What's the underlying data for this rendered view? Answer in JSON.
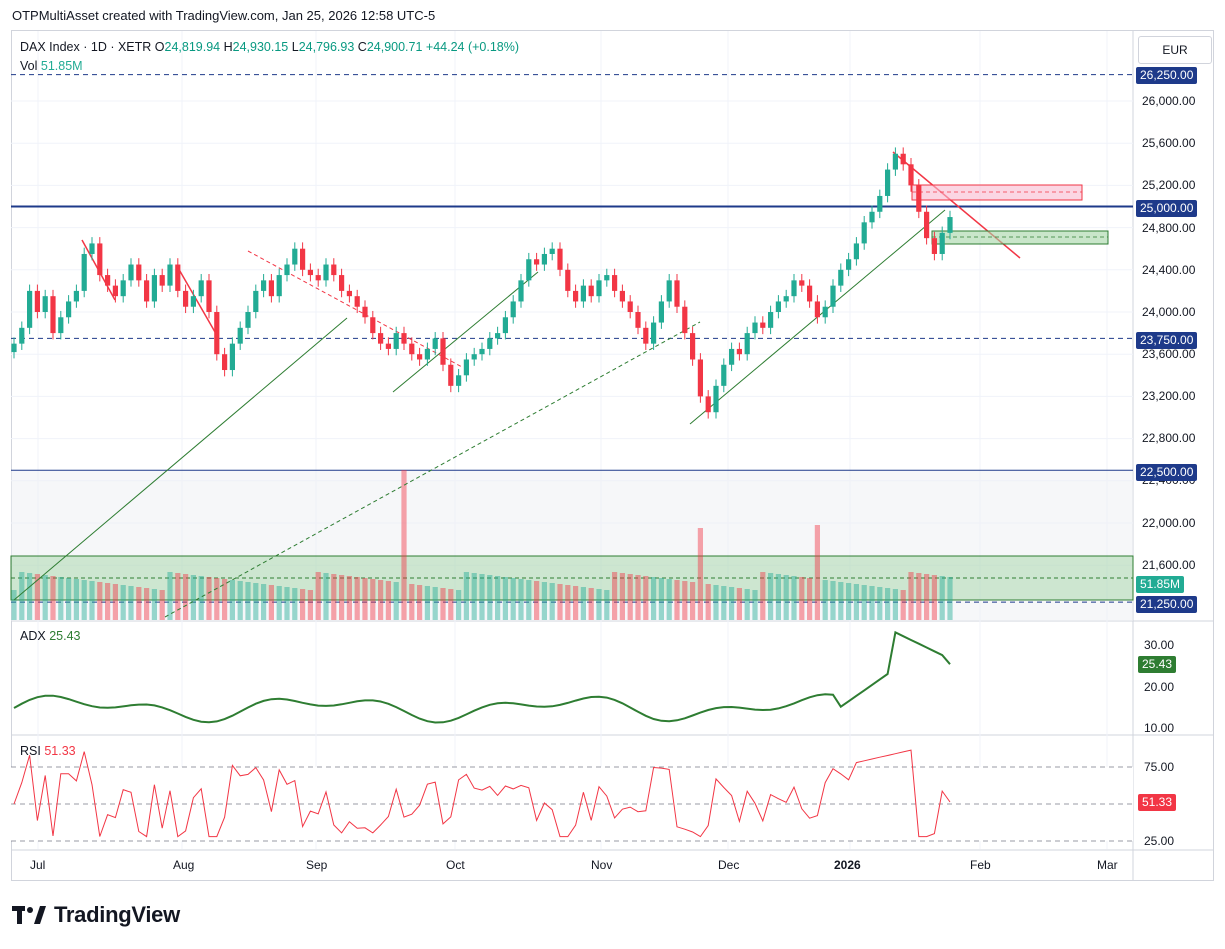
{
  "header": {
    "credit": "OTPMultiAsset created with TradingView.com, Jan 25, 2026 12:58 UTC-5"
  },
  "legend": {
    "symbol": "DAX Index · 1D · XETR",
    "open_label": "O",
    "open": "24,819.94",
    "high_label": "H",
    "high": "24,930.15",
    "low_label": "L",
    "low": "24,796.93",
    "close_label": "C",
    "close": "24,900.71",
    "change": "+44.24 (+0.18%)",
    "vol_label": "Vol",
    "vol": "51.85M"
  },
  "currency": "EUR",
  "price_axis": {
    "ticks": [
      "26,000.00",
      "25,600.00",
      "25,200.00",
      "24,800.00",
      "24,400.00",
      "24,000.00",
      "23,600.00",
      "23,200.00",
      "22,800.00",
      "22,400.00",
      "22,000.00",
      "21,600.00"
    ],
    "badges": {
      "b26250": "26,250.00",
      "b25000": "25,000.00",
      "b23750": "23,750.00",
      "b22500": "22,500.00",
      "b21250": "21,250.00",
      "vol": "51.85M"
    }
  },
  "adx": {
    "label": "ADX",
    "value": "25.43",
    "ticks": [
      "30.00",
      "20.00",
      "10.00"
    ]
  },
  "rsi": {
    "label": "RSI",
    "value": "51.33",
    "ticks": [
      "75.00",
      "25.00"
    ]
  },
  "time_axis": [
    "Jul",
    "Aug",
    "Sep",
    "Oct",
    "Nov",
    "Dec",
    "2026",
    "Feb",
    "Mar"
  ],
  "colors": {
    "up": "#22ab94",
    "down": "#f23645",
    "level": "#1e3a8a",
    "trend": "#2e7d32",
    "adx": "#2e7d32",
    "rsi": "#f23645"
  },
  "brand": {
    "name": "TradingView",
    "logo_icon": "tradingview-logo-icon"
  },
  "chart_data": {
    "type": "candlestick",
    "closes": [
      23700,
      23850,
      24200,
      24000,
      24150,
      23800,
      23950,
      24100,
      24200,
      24550,
      24650,
      24350,
      24250,
      24150,
      24300,
      24450,
      24300,
      24100,
      24350,
      24250,
      24450,
      24200,
      24050,
      24150,
      24300,
      24000,
      23600,
      23450,
      23700,
      23850,
      24000,
      24200,
      24300,
      24150,
      24350,
      24450,
      24600,
      24400,
      24350,
      24300,
      24450,
      24350,
      24200,
      24150,
      24050,
      23950,
      23800,
      23700,
      23650,
      23800,
      23700,
      23600,
      23550,
      23650,
      23750,
      23500,
      23300,
      23400,
      23550,
      23600,
      23650,
      23750,
      23800,
      23950,
      24100,
      24300,
      24500,
      24450,
      24550,
      24600,
      24400,
      24200,
      24100,
      24250,
      24150,
      24300,
      24350,
      24200,
      24100,
      24000,
      23850,
      23700,
      23900,
      24100,
      24300,
      24050,
      23800,
      23550,
      23200,
      23050,
      23300,
      23500,
      23650,
      23600,
      23800,
      23900,
      23850,
      24000,
      24100,
      24150,
      24300,
      24250,
      24100,
      23950,
      24050,
      24250,
      24400,
      24500,
      24650,
      24850,
      24950,
      25100,
      25350,
      25500,
      25400,
      25200,
      24950,
      24700,
      24550,
      24750,
      24900
    ],
    "level_lines": [
      26250,
      25000,
      23750,
      22500,
      21250
    ],
    "last_close_label": "24,900.71",
    "adx_last": 25.43,
    "rsi_last": 51.33
  }
}
